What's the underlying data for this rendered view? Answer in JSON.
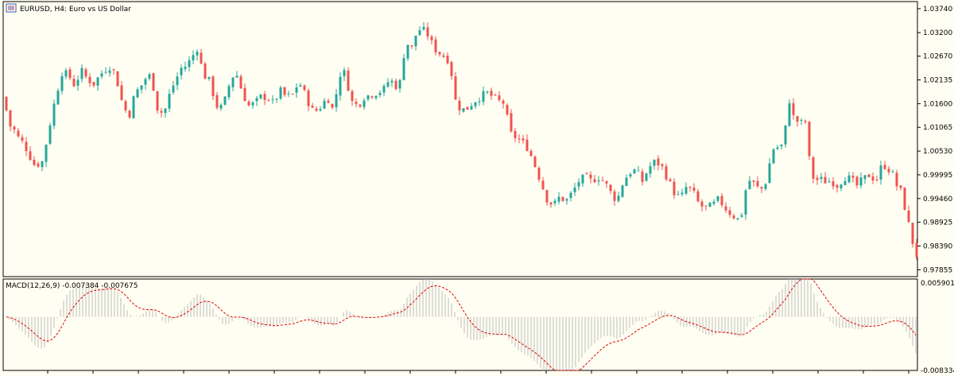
{
  "window": {
    "symbol_title": "EURUSD, H4:  Euro vs US Dollar",
    "indicator_title": "MACD(12,26,9) -0.007384 -0.007675"
  },
  "colors": {
    "background": "#fffef2",
    "bull": "#26a69a",
    "bear": "#ef5350",
    "histogram": "#bdbdbd",
    "signal": "#e00000",
    "grid": "#000000"
  },
  "icons": {
    "chart_icon": "bar-chart-icon"
  },
  "chart_data": [
    {
      "type": "candlestick",
      "title": "EURUSD, H4:  Euro vs US Dollar",
      "y_ticks": [
        "1.03740",
        "1.03200",
        "1.02670",
        "1.02135",
        "1.01600",
        "1.01065",
        "1.00530",
        "0.99995",
        "0.99460",
        "0.98925",
        "0.98390",
        "0.97855"
      ],
      "ylim": [
        0.977,
        1.039
      ],
      "grid": false,
      "bull_color": "#26a69a",
      "bear_color": "#ef5350",
      "candles": 230,
      "close_path": [
        [
          0,
          1.016
        ],
        [
          6,
          1.0175
        ],
        [
          10,
          1.0115
        ],
        [
          18,
          1.01
        ],
        [
          24,
          1.008
        ],
        [
          30,
          1.007
        ],
        [
          38,
          1.004
        ],
        [
          44,
          1.002
        ],
        [
          54,
          1.003
        ],
        [
          60,
          1.009
        ],
        [
          70,
          1.0175
        ],
        [
          78,
          1.023
        ],
        [
          86,
          1.0225
        ],
        [
          94,
          1.02
        ],
        [
          102,
          1.0235
        ],
        [
          110,
          1.0215
        ],
        [
          118,
          1.0205
        ],
        [
          126,
          1.0225
        ],
        [
          134,
          1.024
        ],
        [
          140,
          1.0245
        ],
        [
          146,
          1.022
        ],
        [
          154,
          1.016
        ],
        [
          162,
          1.013
        ],
        [
          170,
          1.0185
        ],
        [
          176,
          1.0195
        ],
        [
          182,
          1.0215
        ],
        [
          190,
          1.0225
        ],
        [
          198,
          1.015
        ],
        [
          206,
          1.0135
        ],
        [
          212,
          1.0175
        ],
        [
          220,
          1.021
        ],
        [
          228,
          1.024
        ],
        [
          234,
          1.0245
        ],
        [
          240,
          1.026
        ],
        [
          248,
          1.0285
        ],
        [
          256,
          1.0225
        ],
        [
          264,
          1.021
        ],
        [
          272,
          1.0155
        ],
        [
          280,
          1.015
        ],
        [
          288,
          1.02
        ],
        [
          296,
          1.0235
        ],
        [
          304,
          1.019
        ],
        [
          312,
          1.0155
        ],
        [
          320,
          1.016
        ],
        [
          328,
          1.0175
        ],
        [
          336,
          1.0175
        ],
        [
          344,
          1.016
        ],
        [
          352,
          1.019
        ],
        [
          360,
          1.0175
        ],
        [
          368,
          1.018
        ],
        [
          376,
          1.021
        ],
        [
          384,
          1.018
        ],
        [
          392,
          1.0145
        ],
        [
          400,
          1.0145
        ],
        [
          406,
          1.016
        ],
        [
          412,
          1.0175
        ],
        [
          420,
          1.014
        ],
        [
          426,
          1.0225
        ],
        [
          434,
          1.023
        ],
        [
          442,
          1.0165
        ],
        [
          450,
          1.0155
        ],
        [
          458,
          1.0175
        ],
        [
          466,
          1.018
        ],
        [
          474,
          1.0185
        ],
        [
          482,
          1.019
        ],
        [
          490,
          1.0215
        ],
        [
          498,
          1.02
        ],
        [
          504,
          1.021
        ],
        [
          510,
          1.03
        ],
        [
          518,
          1.0285
        ],
        [
          524,
          1.032
        ],
        [
          530,
          1.033
        ],
        [
          538,
          1.0315
        ],
        [
          546,
          1.0285
        ],
        [
          552,
          1.0275
        ],
        [
          560,
          1.0265
        ],
        [
          566,
          1.0255
        ],
        [
          572,
          1.017
        ],
        [
          580,
          1.0145
        ],
        [
          588,
          1.015
        ],
        [
          596,
          1.0165
        ],
        [
          604,
          1.0175
        ],
        [
          612,
          1.0185
        ],
        [
          620,
          1.0175
        ],
        [
          628,
          1.0165
        ],
        [
          636,
          1.016
        ],
        [
          640,
          1.0095
        ],
        [
          648,
          1.0085
        ],
        [
          656,
          1.0075
        ],
        [
          664,
          1.006
        ],
        [
          672,
          1.0025
        ],
        [
          680,
          0.9985
        ],
        [
          688,
          0.9945
        ],
        [
          696,
          0.993
        ],
        [
          704,
          0.995
        ],
        [
          712,
          0.994
        ],
        [
          720,
          0.996
        ],
        [
          728,
          0.9985
        ],
        [
          736,
          0.9995
        ],
        [
          744,
          0.9985
        ],
        [
          752,
          0.9995
        ],
        [
          760,
          0.9985
        ],
        [
          768,
          0.996
        ],
        [
          776,
          0.994
        ],
        [
          784,
          0.9985
        ],
        [
          792,
          1.0005
        ],
        [
          800,
          1.001
        ],
        [
          808,
          0.9985
        ],
        [
          816,
          1.0015
        ],
        [
          824,
          1.003
        ],
        [
          832,
          1.002
        ],
        [
          840,
          0.999
        ],
        [
          848,
          0.996
        ],
        [
          856,
          0.9945
        ],
        [
          864,
          0.9975
        ],
        [
          872,
          0.996
        ],
        [
          880,
          0.993
        ],
        [
          888,
          0.9925
        ],
        [
          896,
          0.993
        ],
        [
          904,
          0.9945
        ],
        [
          912,
          0.9925
        ],
        [
          920,
          0.991
        ],
        [
          928,
          0.99
        ],
        [
          934,
          0.9915
        ],
        [
          940,
          0.999
        ],
        [
          948,
          0.998
        ],
        [
          956,
          0.9965
        ],
        [
          962,
          0.9975
        ],
        [
          968,
          1.0025
        ],
        [
          974,
          1.0065
        ],
        [
          980,
          1.006
        ],
        [
          986,
          1.007
        ],
        [
          992,
          1.0175
        ],
        [
          998,
          1.013
        ],
        [
          1006,
          1.0115
        ],
        [
          1014,
          1.012
        ],
        [
          1018,
          1.0035
        ],
        [
          1024,
          0.9985
        ],
        [
          1030,
          0.999
        ],
        [
          1038,
          0.9985
        ],
        [
          1046,
          0.9985
        ],
        [
          1054,
          0.9975
        ],
        [
          1062,
          0.9995
        ],
        [
          1070,
          0.999
        ],
        [
          1078,
          0.9975
        ],
        [
          1086,
          0.999
        ],
        [
          1094,
          1.0
        ],
        [
          1102,
          0.9985
        ],
        [
          1110,
          1.0025
        ],
        [
          1116,
          1.0015
        ],
        [
          1122,
          1.0005
        ],
        [
          1128,
          0.9975
        ],
        [
          1134,
          0.996
        ],
        [
          1140,
          0.991
        ],
        [
          1146,
          0.9865
        ],
        [
          1150,
          0.983
        ],
        [
          1155,
          0.981
        ]
      ]
    },
    {
      "type": "histogram+line",
      "title": "MACD(12,26,9) -0.007384 -0.007675",
      "series": [
        {
          "name": "MACD(12,26,9)",
          "style": "histogram"
        },
        {
          "name": "",
          "style": "dashed-line"
        }
      ],
      "y_ticks": [
        "0.005901",
        "-0.008334"
      ],
      "ylim": [
        -0.008334,
        0.005901
      ],
      "current_values": {
        "macd": -0.007384,
        "signal": -0.007675
      }
    }
  ]
}
